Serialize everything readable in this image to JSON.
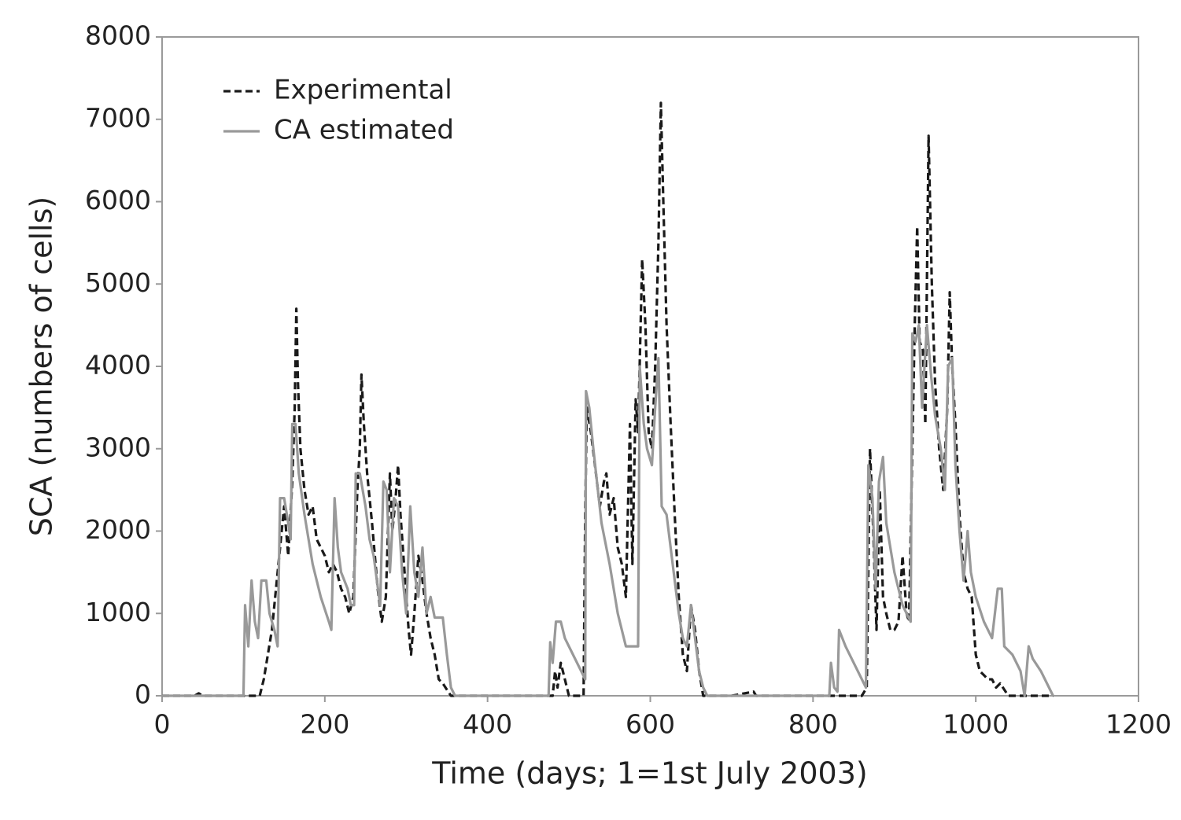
{
  "chart_data": {
    "type": "line",
    "xlabel": "Time (days; 1=1st July 2003)",
    "ylabel": "SCA (numbers of cells)",
    "xlim": [
      0,
      1200
    ],
    "xticks": [
      0,
      200,
      400,
      600,
      800,
      1000,
      1200
    ],
    "ylim": [
      0,
      8000
    ],
    "yticks": [
      0,
      1000,
      2000,
      3000,
      4000,
      5000,
      6000,
      7000,
      8000
    ],
    "grid": false,
    "legend": "upper left",
    "series": [
      {
        "name": "Experimental",
        "color": "#1a1a1a",
        "line_style": "dashed",
        "x": [
          0,
          40,
          45,
          50,
          110,
          120,
          125,
          135,
          140,
          145,
          150,
          155,
          160,
          163,
          165,
          167,
          170,
          175,
          180,
          185,
          190,
          200,
          205,
          210,
          215,
          220,
          225,
          230,
          235,
          240,
          243,
          245,
          248,
          252,
          258,
          265,
          270,
          275,
          280,
          283,
          287,
          290,
          293,
          298,
          303,
          306,
          310,
          315,
          320,
          325,
          330,
          335,
          340,
          345,
          355,
          480,
          483,
          486,
          490,
          495,
          500,
          510,
          518,
          520,
          522,
          527,
          532,
          538,
          543,
          546,
          550,
          555,
          560,
          565,
          570,
          575,
          578,
          582,
          585,
          590,
          594,
          598,
          602,
          606,
          610,
          613,
          616,
          620,
          625,
          630,
          635,
          640,
          645,
          650,
          655,
          660,
          665,
          700,
          727,
          730,
          860,
          866,
          870,
          874,
          878,
          882,
          886,
          890,
          895,
          900,
          905,
          910,
          915,
          918,
          922,
          925,
          928,
          931,
          935,
          938,
          942,
          946,
          950,
          955,
          960,
          965,
          968,
          971,
          975,
          980,
          985,
          990,
          995,
          1000,
          1005,
          1010,
          1015,
          1020,
          1025,
          1030,
          1040,
          1060,
          1095
        ],
        "values": [
          0,
          0,
          30,
          0,
          0,
          0,
          200,
          800,
          1300,
          1800,
          2300,
          1700,
          2600,
          3500,
          4700,
          3800,
          3000,
          2500,
          2200,
          2300,
          1900,
          1700,
          1500,
          1600,
          1500,
          1300,
          1200,
          1000,
          1200,
          2500,
          3000,
          3900,
          3300,
          2700,
          2100,
          1300,
          900,
          1200,
          2700,
          2000,
          2400,
          2800,
          2200,
          1500,
          800,
          500,
          1000,
          1700,
          1400,
          1000,
          700,
          500,
          200,
          150,
          0,
          0,
          300,
          100,
          400,
          200,
          0,
          0,
          0,
          2200,
          3500,
          3200,
          2800,
          2300,
          2600,
          2700,
          2200,
          2400,
          1800,
          1600,
          1200,
          3300,
          1600,
          3600,
          3200,
          5300,
          4500,
          3200,
          3000,
          4000,
          5500,
          7200,
          6000,
          4500,
          3300,
          2200,
          1200,
          500,
          300,
          1100,
          800,
          300,
          0,
          0,
          50,
          0,
          0,
          100,
          3000,
          2000,
          800,
          2500,
          1200,
          1000,
          800,
          800,
          900,
          1700,
          1000,
          900,
          3000,
          4500,
          5700,
          4300,
          4200,
          3300,
          6800,
          5000,
          3800,
          3000,
          2500,
          3500,
          4900,
          4000,
          3300,
          2200,
          1500,
          1300,
          1200,
          500,
          300,
          250,
          200,
          200,
          100,
          150,
          0,
          0,
          0
        ]
      },
      {
        "name": "CA estimated",
        "color": "#999999",
        "line_style": "solid",
        "x": [
          0,
          100,
          102,
          106,
          110,
          114,
          118,
          122,
          128,
          132,
          138,
          142,
          145,
          150,
          155,
          158,
          160,
          164,
          168,
          175,
          185,
          195,
          205,
          208,
          212,
          216,
          220,
          228,
          232,
          236,
          238,
          243,
          250,
          255,
          260,
          268,
          272,
          276,
          280,
          285,
          290,
          295,
          300,
          305,
          310,
          315,
          320,
          325,
          330,
          335,
          345,
          350,
          355,
          360,
          475,
          477,
          480,
          484,
          490,
          495,
          505,
          515,
          520,
          521,
          525,
          530,
          540,
          550,
          560,
          570,
          585,
          587,
          592,
          596,
          602,
          606,
          610,
          614,
          620,
          625,
          630,
          635,
          640,
          645,
          650,
          655,
          660,
          665,
          670,
          820,
          822,
          826,
          830,
          832,
          840,
          855,
          865,
          868,
          873,
          877,
          881,
          886,
          890,
          900,
          910,
          920,
          922,
          926,
          930,
          934,
          940,
          945,
          950,
          957,
          962,
          966,
          971,
          975,
          980,
          985,
          990,
          994,
          1000,
          1010,
          1020,
          1027,
          1032,
          1035,
          1045,
          1055,
          1060,
          1065,
          1070,
          1080,
          1090,
          1095
        ],
        "values": [
          0,
          0,
          1100,
          600,
          1400,
          900,
          700,
          1400,
          1400,
          1000,
          800,
          600,
          2400,
          2400,
          2100,
          1900,
          3300,
          3300,
          2700,
          2200,
          1600,
          1200,
          900,
          800,
          2400,
          1800,
          1500,
          1300,
          1100,
          1100,
          2700,
          2700,
          2300,
          1900,
          1700,
          1100,
          2600,
          2500,
          1500,
          2400,
          2300,
          1500,
          1000,
          2300,
          1500,
          1200,
          1800,
          1000,
          1200,
          950,
          950,
          500,
          100,
          0,
          0,
          650,
          400,
          900,
          900,
          700,
          500,
          300,
          200,
          3700,
          3500,
          3000,
          2100,
          1600,
          1000,
          600,
          600,
          4000,
          3300,
          3000,
          2800,
          3500,
          4100,
          2300,
          2200,
          1800,
          1400,
          1000,
          700,
          600,
          1100,
          700,
          300,
          100,
          0,
          0,
          400,
          100,
          50,
          800,
          600,
          300,
          100,
          2800,
          2400,
          1300,
          2600,
          2900,
          2100,
          1500,
          1100,
          900,
          4400,
          4300,
          4500,
          3500,
          4500,
          3900,
          3400,
          3000,
          2500,
          4000,
          4100,
          2800,
          2000,
          1400,
          2000,
          1500,
          1200,
          900,
          700,
          1300,
          1300,
          600,
          500,
          300,
          0,
          600,
          450,
          300,
          100,
          0
        ]
      }
    ]
  }
}
